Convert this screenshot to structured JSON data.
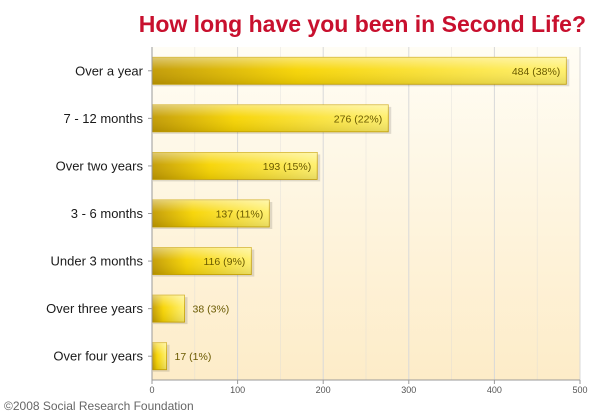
{
  "colors": {
    "title": "#c8102e",
    "bar_light": "#fff06a",
    "bar_mid": "#f7d400",
    "bar_dark": "#c29a00",
    "grid": "#d9d9d9",
    "plot_bg_top": "#fffdf5",
    "plot_bg_bottom": "#fdecc8",
    "footer": "#666666"
  },
  "footer": "©2008 Social Research Foundation",
  "chart_data": {
    "type": "bar",
    "orientation": "horizontal",
    "title": "How long have you been in Second Life?",
    "xlabel": "",
    "ylabel": "",
    "xlim": [
      0,
      500
    ],
    "x_ticks": [
      0,
      100,
      200,
      300,
      400,
      500
    ],
    "grid": true,
    "legend": "none",
    "categories": [
      "Over a year",
      "7 - 12 months",
      "Over two years",
      "3 - 6 months",
      "Under 3 months",
      "Over three years",
      "Over four years"
    ],
    "values": [
      484,
      276,
      193,
      137,
      116,
      38,
      17
    ],
    "data_labels": [
      "484 (38%)",
      "276 (22%)",
      "193 (15%)",
      "137 (11%)",
      "116 (9%)",
      "38 (3%)",
      "17 (1%)"
    ]
  }
}
